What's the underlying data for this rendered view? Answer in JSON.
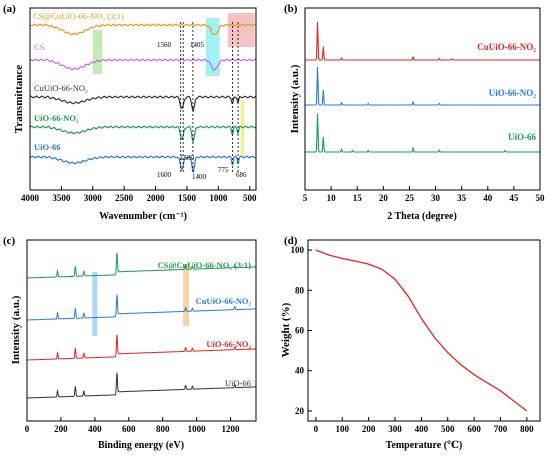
{
  "colors": {
    "orange": "#e39a1b",
    "purple": "#c768d6",
    "black": "#333333",
    "green": "#1a9c55",
    "blue": "#2a7ad6",
    "red": "#e02424",
    "hl_green": "#b7e8a8",
    "hl_cyan": "#8ff0f0",
    "hl_pink": "#f5b8b8",
    "hl_yellow": "#f5ec7a",
    "hl_blue": "#9fd2f0",
    "hl_orange": "#f5cf8f"
  },
  "chart_data": [
    {
      "panel_label": "(a)",
      "type": "line",
      "xlabel": "Wavenumber (cm⁻¹)",
      "ylabel": "Transmittance",
      "xlim": [
        4000,
        400
      ],
      "xticks": [
        "4000",
        "3500",
        "3000",
        "2500",
        "2000",
        "1500",
        "1000",
        "500"
      ],
      "x_reversed": true,
      "grid": false,
      "series": [
        {
          "name": "CS@CuUiO-66-NO₂ (3:1)",
          "color": "orange"
        },
        {
          "name": "CS",
          "color": "purple"
        },
        {
          "name": "CuUiO-66-NO₂",
          "color": "black"
        },
        {
          "name": "UiO-66-NO₂",
          "color": "green"
        },
        {
          "name": "UiO-66",
          "color": "blue"
        }
      ],
      "annotations": [
        {
          "text": "1560",
          "x": 1560
        },
        {
          "text": "1405",
          "x": 1405
        },
        {
          "text": "1600",
          "x": 1600
        },
        {
          "text": "1580",
          "x": 1580
        },
        {
          "text": "1400",
          "x": 1400
        },
        {
          "text": "775",
          "x": 775
        },
        {
          "text": "686",
          "x": 686
        }
      ],
      "highlight_bands": [
        {
          "from": 3000,
          "to": 2850,
          "color": "hl_green"
        },
        {
          "from": 1200,
          "to": 980,
          "color": "hl_cyan"
        },
        {
          "from": 850,
          "to": 420,
          "color": "hl_pink"
        },
        {
          "from": 640,
          "to": 590,
          "color": "hl_yellow"
        }
      ]
    },
    {
      "panel_label": "(b)",
      "type": "line",
      "xlabel": "2 Theta (degree)",
      "ylabel": "Intensity (a.u.)",
      "xlim": [
        5,
        50
      ],
      "xticks": [
        "5",
        "10",
        "15",
        "20",
        "25",
        "30",
        "35",
        "40",
        "45",
        "50"
      ],
      "grid": false,
      "series": [
        {
          "name": "CuUiO-66-NO₂",
          "color": "red",
          "peaks": [
            [
              7.4,
              1.0
            ],
            [
              8.5,
              0.35
            ],
            [
              12.0,
              0.05
            ],
            [
              25.7,
              0.08
            ],
            [
              30.7,
              0.04
            ],
            [
              33.1,
              0.03
            ]
          ]
        },
        {
          "name": "UiO-66-NO₂",
          "color": "blue",
          "peaks": [
            [
              7.4,
              1.0
            ],
            [
              8.5,
              0.4
            ],
            [
              12.0,
              0.06
            ],
            [
              17.1,
              0.04
            ],
            [
              25.7,
              0.08
            ],
            [
              30.7,
              0.04
            ]
          ]
        },
        {
          "name": "UiO-66",
          "color": "green",
          "peaks": [
            [
              7.4,
              1.0
            ],
            [
              8.5,
              0.4
            ],
            [
              12.0,
              0.07
            ],
            [
              14.1,
              0.04
            ],
            [
              17.1,
              0.04
            ],
            [
              25.7,
              0.1
            ],
            [
              30.7,
              0.05
            ],
            [
              43.3,
              0.04
            ]
          ]
        }
      ]
    },
    {
      "panel_label": "(c)",
      "type": "line",
      "xlabel": "Binding energy (eV)",
      "ylabel": "Intensity (a.u.)",
      "xlim": [
        0,
        1350
      ],
      "xticks": [
        "0",
        "200",
        "400",
        "600",
        "800",
        "1000",
        "1200"
      ],
      "grid": false,
      "series": [
        {
          "name": "CS@CuUiO-66-NO₂ (3:1)",
          "color": "green"
        },
        {
          "name": "CuUiO-66-NO₂",
          "color": "blue"
        },
        {
          "name": "UiO-66-NO₂",
          "color": "red"
        },
        {
          "name": "UiO-66",
          "color": "black"
        }
      ],
      "highlight_bands": [
        {
          "from": 385,
          "to": 415,
          "color": "hl_blue"
        },
        {
          "from": 920,
          "to": 955,
          "color": "hl_orange"
        }
      ]
    },
    {
      "panel_label": "(d)",
      "type": "line",
      "xlabel": "Temperature (℃)",
      "ylabel": "Weight (%)",
      "xlim": [
        -30,
        850
      ],
      "ylim": [
        15,
        105
      ],
      "xticks": [
        "0",
        "100",
        "200",
        "300",
        "400",
        "500",
        "600",
        "700",
        "800"
      ],
      "yticks": [
        "20",
        "40",
        "60",
        "80",
        "100"
      ],
      "grid": false,
      "series": [
        {
          "name": "",
          "color": "red",
          "x": [
            0,
            50,
            100,
            150,
            200,
            250,
            300,
            350,
            400,
            450,
            500,
            550,
            600,
            650,
            700,
            750,
            800
          ],
          "y": [
            100,
            97.5,
            95.8,
            94.5,
            93,
            90.5,
            85.5,
            77,
            66,
            56.5,
            49,
            43,
            38,
            34,
            30,
            25,
            20
          ]
        }
      ]
    }
  ]
}
